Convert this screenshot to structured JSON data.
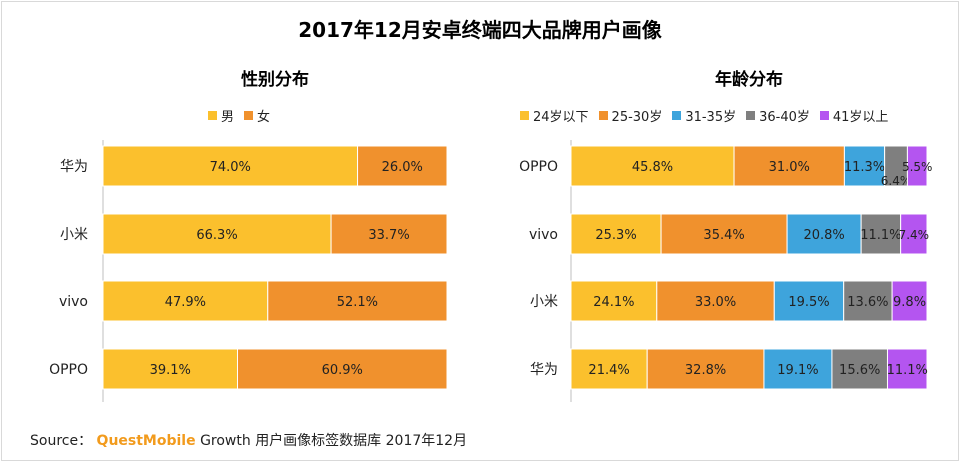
{
  "title": "2017年12月安卓终端四大品牌用户画像",
  "source": {
    "prefix": "Source：",
    "brand": "QuestMobile",
    "text": "Growth 用户画像标签数据库 2017年12月"
  },
  "chart_data": [
    {
      "type": "bar",
      "orientation": "horizontal",
      "stacked": "percent",
      "title": "性别分布",
      "categories": [
        "华为",
        "小米",
        "vivo",
        "OPPO"
      ],
      "series": [
        {
          "name": "男",
          "color": "#fbc02d",
          "values": [
            74.0,
            66.3,
            47.9,
            39.1
          ],
          "labels": [
            "74.0%",
            "66.3%",
            "47.9%",
            "39.1%"
          ]
        },
        {
          "name": "女",
          "color": "#f0912d",
          "values": [
            26.0,
            33.7,
            52.1,
            60.9
          ],
          "labels": [
            "26.0%",
            "33.7%",
            "52.1%",
            "60.9%"
          ]
        }
      ],
      "xlim": [
        0,
        100
      ],
      "legend_position": "top",
      "grid": false
    },
    {
      "type": "bar",
      "orientation": "horizontal",
      "stacked": "percent",
      "title": "年龄分布",
      "categories": [
        "OPPO",
        "vivo",
        "小米",
        "华为"
      ],
      "series": [
        {
          "name": "24岁以下",
          "color": "#fbc02d",
          "values": [
            45.8,
            25.3,
            24.1,
            21.4
          ],
          "labels": [
            "45.8%",
            "25.3%",
            "24.1%",
            "21.4%"
          ]
        },
        {
          "name": "25-30岁",
          "color": "#f0912d",
          "values": [
            31.0,
            35.4,
            33.0,
            32.8
          ],
          "labels": [
            "31.0%",
            "35.4%",
            "33.0%",
            "32.8%"
          ]
        },
        {
          "name": "31-35岁",
          "color": "#3ea4dc",
          "values": [
            11.3,
            20.8,
            19.5,
            19.1
          ],
          "labels": [
            "11.3%",
            "20.8%",
            "19.5%",
            "19.1%"
          ]
        },
        {
          "name": "36-40岁",
          "color": "#7f7f7f",
          "values": [
            6.4,
            11.1,
            13.6,
            15.6
          ],
          "labels": [
            "6.4%",
            "11.1%",
            "13.6%",
            "15.6%"
          ]
        },
        {
          "name": "41岁以上",
          "color": "#b455f0",
          "values": [
            5.5,
            7.4,
            9.8,
            11.1
          ],
          "labels": [
            "5.5%",
            "7.4%",
            "9.8%",
            "11.1%"
          ]
        }
      ],
      "xlim": [
        0,
        100
      ],
      "legend_position": "top",
      "grid": false
    }
  ]
}
